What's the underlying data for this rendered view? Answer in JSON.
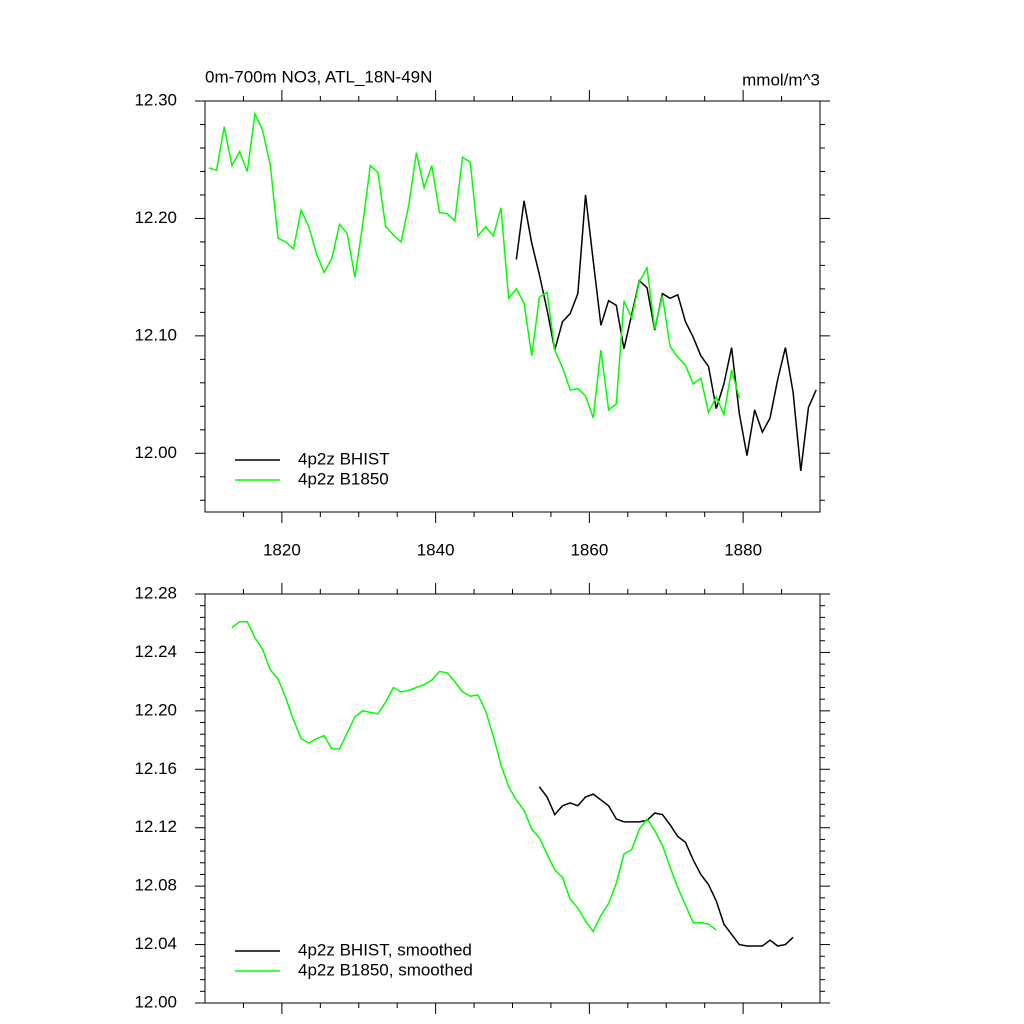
{
  "chart_data": [
    {
      "type": "line",
      "title": "0m-700m NO3, ATL_18N-49N",
      "subtitle": "mmol/m^3",
      "legend": "lower left",
      "xlim": [
        1810,
        1890
      ],
      "xticks": [
        1820,
        1840,
        1860,
        1880
      ],
      "ylim": [
        11.95,
        12.3
      ],
      "yticks": [
        {
          "value": 12.0,
          "label": "12.00"
        },
        {
          "value": 12.1,
          "label": "12.10"
        },
        {
          "value": 12.2,
          "label": "12.20"
        },
        {
          "value": 12.3,
          "label": "12.30"
        }
      ],
      "series": [
        {
          "name": "4p2z BHIST",
          "color": "#000000",
          "x": [
            1850.5,
            1851.5,
            1852.5,
            1853.5,
            1854.5,
            1855.5,
            1856.5,
            1857.5,
            1858.5,
            1859.5,
            1860.5,
            1861.5,
            1862.5,
            1863.5,
            1864.5,
            1865.5,
            1866.5,
            1867.5,
            1868.5,
            1869.5,
            1870.5,
            1871.5,
            1872.5,
            1873.5,
            1874.5,
            1875.5,
            1876.5,
            1877.5,
            1878.5,
            1879.5,
            1880.5,
            1881.5,
            1882.5,
            1883.5,
            1884.5,
            1885.5,
            1886.5,
            1887.5,
            1888.5,
            1889.5
          ],
          "values": [
            12.165,
            12.215,
            12.179,
            12.152,
            12.122,
            12.088,
            12.112,
            12.119,
            12.136,
            12.22,
            12.164,
            12.109,
            12.13,
            12.126,
            12.089,
            12.118,
            12.147,
            12.141,
            12.105,
            12.136,
            12.132,
            12.135,
            12.112,
            12.099,
            12.083,
            12.074,
            12.038,
            12.059,
            12.09,
            12.034,
            11.998,
            12.037,
            12.018,
            12.03,
            12.063,
            12.09,
            12.052,
            11.985,
            12.039,
            12.054
          ]
        },
        {
          "name": "4p2z B1850",
          "color": "#00ff00",
          "x": [
            1810.5,
            1811.5,
            1812.5,
            1813.5,
            1814.5,
            1815.5,
            1816.5,
            1817.5,
            1818.5,
            1819.5,
            1820.5,
            1821.5,
            1822.5,
            1823.5,
            1824.5,
            1825.5,
            1826.5,
            1827.5,
            1828.5,
            1829.5,
            1830.5,
            1831.5,
            1832.5,
            1833.5,
            1834.5,
            1835.5,
            1836.5,
            1837.5,
            1838.5,
            1839.5,
            1840.5,
            1841.5,
            1842.5,
            1843.5,
            1844.5,
            1845.5,
            1846.5,
            1847.5,
            1848.5,
            1849.5,
            1850.5,
            1851.5,
            1852.5,
            1853.5,
            1854.5,
            1855.5,
            1856.5,
            1857.5,
            1858.5,
            1859.5,
            1860.5,
            1861.5,
            1862.5,
            1863.5,
            1864.5,
            1865.5,
            1866.5,
            1867.5,
            1868.5,
            1869.5,
            1870.5,
            1871.5,
            1872.5,
            1873.5,
            1874.5,
            1875.5,
            1876.5,
            1877.5,
            1878.5,
            1879.5
          ],
          "values": [
            12.243,
            12.241,
            12.278,
            12.245,
            12.257,
            12.24,
            12.289,
            12.275,
            12.245,
            12.183,
            12.18,
            12.174,
            12.207,
            12.193,
            12.17,
            12.154,
            12.166,
            12.195,
            12.187,
            12.15,
            12.194,
            12.245,
            12.239,
            12.193,
            12.186,
            12.18,
            12.211,
            12.256,
            12.226,
            12.245,
            12.205,
            12.204,
            12.198,
            12.252,
            12.248,
            12.185,
            12.193,
            12.185,
            12.209,
            12.132,
            12.14,
            12.128,
            12.083,
            12.133,
            12.137,
            12.088,
            12.073,
            12.054,
            12.055,
            12.049,
            12.03,
            12.088,
            12.037,
            12.042,
            12.13,
            12.115,
            12.146,
            12.158,
            12.106,
            12.134,
            12.091,
            12.082,
            12.075,
            12.059,
            12.064,
            12.035,
            12.048,
            12.033,
            12.071,
            12.047
          ]
        }
      ]
    },
    {
      "type": "line",
      "legend": "lower left",
      "xlim": [
        1810,
        1890
      ],
      "xticks": [
        1820,
        1840,
        1860,
        1880
      ],
      "ylim": [
        12.0,
        12.28
      ],
      "yticks": [
        {
          "value": 12.0,
          "label": "12.00"
        },
        12.04,
        12.08,
        12.12,
        12.16,
        {
          "value": 12.2,
          "label": "12.20"
        },
        12.24,
        12.28
      ],
      "series": [
        {
          "name": "4p2z BHIST, smoothed",
          "color": "#000000",
          "x": [
            1853.5,
            1854.5,
            1855.5,
            1856.5,
            1857.5,
            1858.5,
            1859.5,
            1860.5,
            1861.5,
            1862.5,
            1863.5,
            1864.5,
            1865.5,
            1866.5,
            1867.5,
            1868.5,
            1869.5,
            1870.5,
            1871.5,
            1872.5,
            1873.5,
            1874.5,
            1875.5,
            1876.5,
            1877.5,
            1878.5,
            1879.5,
            1880.5,
            1881.5,
            1882.5,
            1883.5,
            1884.5,
            1885.5,
            1886.5
          ],
          "values": [
            12.148,
            12.141,
            12.129,
            12.135,
            12.137,
            12.135,
            12.141,
            12.143,
            12.139,
            12.135,
            12.126,
            12.124,
            12.124,
            12.124,
            12.125,
            12.13,
            12.129,
            12.122,
            12.114,
            12.11,
            12.098,
            12.088,
            12.081,
            12.07,
            12.054,
            12.047,
            12.04,
            12.039,
            12.039,
            12.039,
            12.043,
            12.039,
            12.04,
            12.045
          ]
        },
        {
          "name": "4p2z B1850, smoothed",
          "color": "#00ff00",
          "x": [
            1813.5,
            1814.5,
            1815.5,
            1816.5,
            1817.5,
            1818.5,
            1819.5,
            1820.5,
            1821.5,
            1822.5,
            1823.5,
            1824.5,
            1825.5,
            1826.5,
            1827.5,
            1828.5,
            1829.5,
            1830.5,
            1831.5,
            1832.5,
            1833.5,
            1834.5,
            1835.5,
            1836.5,
            1837.5,
            1838.5,
            1839.5,
            1840.5,
            1841.5,
            1842.5,
            1843.5,
            1844.5,
            1845.5,
            1846.5,
            1847.5,
            1848.5,
            1849.5,
            1850.5,
            1851.5,
            1852.5,
            1853.5,
            1854.5,
            1855.5,
            1856.5,
            1857.5,
            1858.5,
            1859.5,
            1860.5,
            1861.5,
            1862.5,
            1863.5,
            1864.5,
            1865.5,
            1866.5,
            1867.5,
            1868.5,
            1869.5,
            1870.5,
            1871.5,
            1872.5,
            1873.5,
            1874.5,
            1875.5,
            1876.5
          ],
          "values": [
            12.257,
            12.261,
            12.261,
            12.25,
            12.242,
            12.228,
            12.222,
            12.209,
            12.194,
            12.181,
            12.178,
            12.181,
            12.183,
            12.174,
            12.174,
            12.185,
            12.196,
            12.2,
            12.199,
            12.198,
            12.206,
            12.216,
            12.213,
            12.214,
            12.216,
            12.218,
            12.221,
            12.227,
            12.226,
            12.22,
            12.213,
            12.21,
            12.211,
            12.2,
            12.183,
            12.163,
            12.148,
            12.139,
            12.132,
            12.119,
            12.113,
            12.102,
            12.091,
            12.086,
            12.071,
            12.065,
            12.056,
            12.049,
            12.06,
            12.068,
            12.082,
            12.102,
            12.105,
            12.119,
            12.126,
            12.118,
            12.108,
            12.093,
            12.079,
            12.067,
            12.055,
            12.055,
            12.054,
            12.05
          ]
        }
      ]
    }
  ]
}
